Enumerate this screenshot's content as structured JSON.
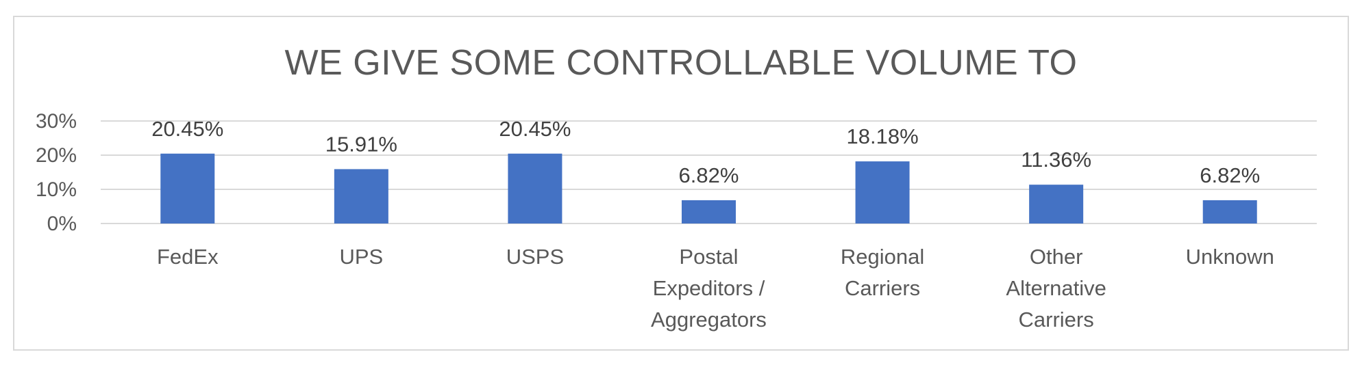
{
  "chart_data": {
    "type": "bar",
    "title": "WE GIVE SOME CONTROLLABLE VOLUME TO",
    "categories": [
      [
        "FedEx"
      ],
      [
        "UPS"
      ],
      [
        "USPS"
      ],
      [
        "Postal",
        "Expeditors /",
        "Aggregators"
      ],
      [
        "Regional",
        "Carriers"
      ],
      [
        "Other",
        "Alternative",
        "Carriers"
      ],
      [
        "Unknown"
      ]
    ],
    "values": [
      20.45,
      15.91,
      20.45,
      6.82,
      18.18,
      11.36,
      6.82
    ],
    "data_labels": [
      "20.45%",
      "15.91%",
      "20.45%",
      "6.82%",
      "18.18%",
      "11.36%",
      "6.82%"
    ],
    "y_ticks": [
      0,
      10,
      20,
      30
    ],
    "y_tick_labels": [
      "0%",
      "10%",
      "20%",
      "30%"
    ],
    "ylim": [
      0,
      30
    ],
    "xlabel": "",
    "ylabel": "",
    "grid": true,
    "legend": "none",
    "colors": {
      "bar": "#4472c4",
      "grid": "#d9d9d9",
      "text": "#595959",
      "frame": "#d9d9d9"
    }
  }
}
